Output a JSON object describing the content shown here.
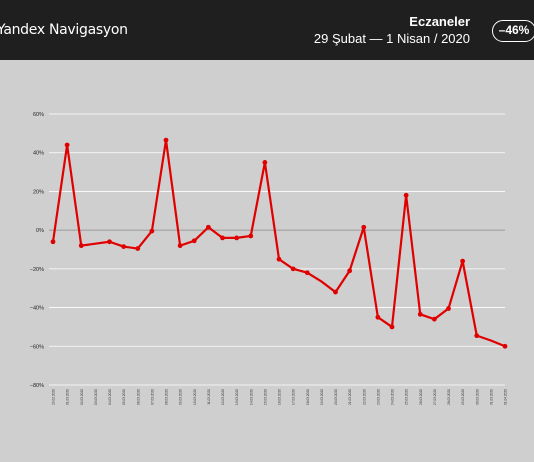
{
  "header": {
    "brand": "Yandex Navigasyon",
    "title": "Eczaneler",
    "date_range": "29 Şubat  —  1 Nisan / 2020",
    "change_badge": "–46%"
  },
  "colors": {
    "header_bg": "#1f1f1f",
    "chart_bg": "#cfcfcf",
    "line": "#e00000",
    "grid": "#ffffff",
    "zero_line": "#8a8a8a"
  },
  "chart_data": {
    "type": "line",
    "title": "",
    "xlabel": "",
    "ylabel": "",
    "ylim": [
      -80,
      60
    ],
    "y_ticks": [
      60,
      40,
      20,
      0,
      -20,
      -40,
      -60,
      -80
    ],
    "y_tick_labels": [
      "60%",
      "40%",
      "20%",
      "0%",
      "−20%",
      "−40%",
      "−60%",
      "−80%"
    ],
    "grid": true,
    "x": [
      "29.02.2020",
      "01.03.2020",
      "02.03.2020",
      "03.03.2020",
      "04.03.2020",
      "05.03.2020",
      "06.03.2020",
      "07.03.2020",
      "08.03.2020",
      "09.03.2020",
      "10.03.2020",
      "11.03.2020",
      "12.03.2020",
      "13.03.2020",
      "14.03.2020",
      "15.03.2020",
      "16.03.2020",
      "17.03.2020",
      "18.03.2020",
      "19.03.2020",
      "20.03.2020",
      "21.03.2020",
      "22.03.2020",
      "23.03.2020",
      "24.03.2020",
      "25.03.2020",
      "26.03.2020",
      "27.03.2020",
      "28.03.2020",
      "29.03.2020",
      "30.03.2020",
      "31.03.2020",
      "01.04.2020"
    ],
    "series": [
      {
        "values": [
          -6,
          44,
          -8,
          -7,
          -6,
          -8.5,
          -9.5,
          -0.5,
          46.5,
          -8,
          -5.5,
          1.5,
          -4,
          -4,
          -3,
          35,
          -15,
          -20,
          -22,
          -26.5,
          -32,
          -21,
          1.5,
          -45,
          -50,
          18,
          -43.5,
          -46,
          -40.5,
          -16,
          -54.5,
          -57,
          -60
        ]
      }
    ],
    "markers": [
      0,
      1,
      2,
      4,
      5,
      6,
      7,
      8,
      9,
      10,
      11,
      12,
      13,
      14,
      15,
      16,
      17,
      18,
      20,
      21,
      22,
      23,
      24,
      25,
      26,
      27,
      28,
      29,
      30,
      32
    ]
  }
}
